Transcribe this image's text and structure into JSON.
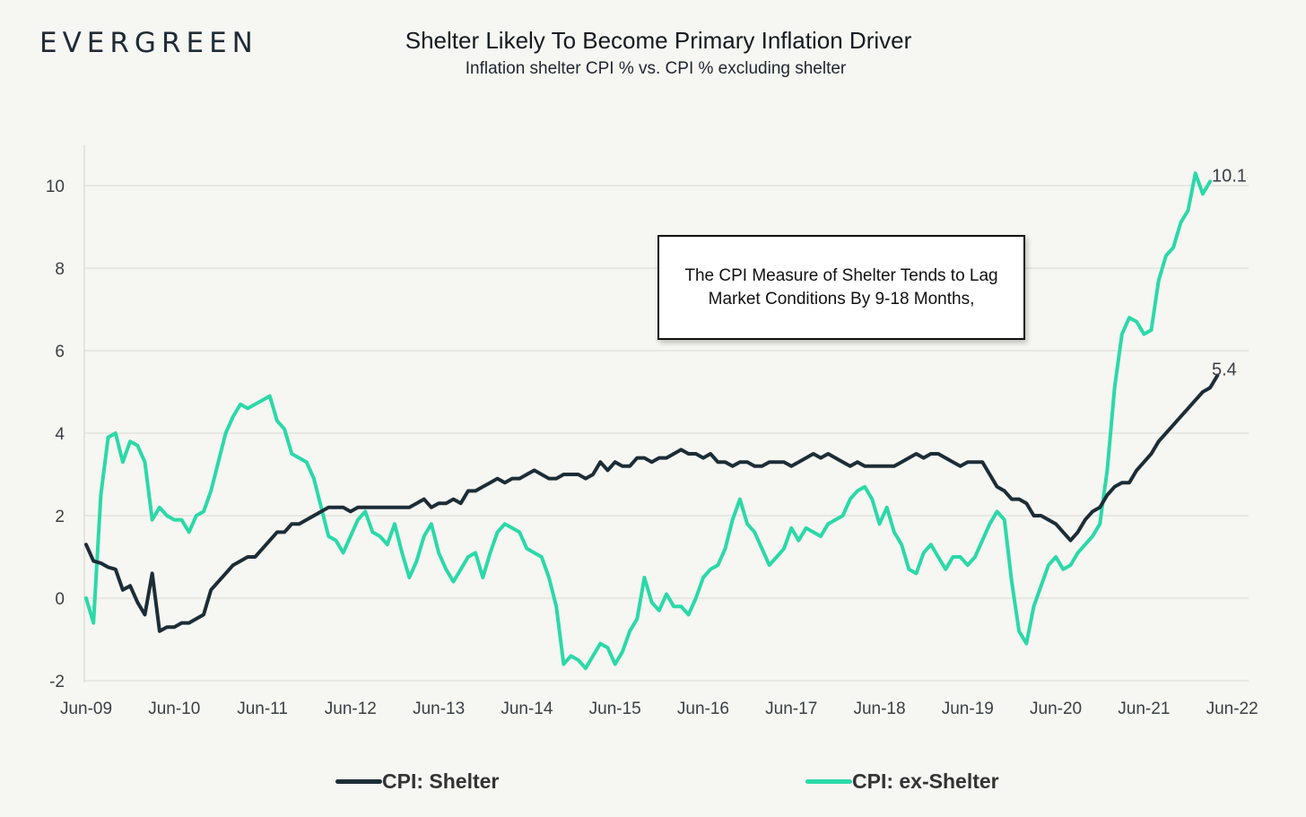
{
  "brand": {
    "logo_text": "EVERGREEN"
  },
  "chart_data": {
    "type": "line",
    "title": "Shelter Likely To Become Primary Inflation Driver",
    "subtitle": "Inflation shelter CPI % vs. CPI % excluding shelter",
    "xlabel": "",
    "ylabel": "",
    "x_range_months": [
      "2009-06",
      "2022-06"
    ],
    "x_ticks": [
      "Jun-09",
      "Jun-10",
      "Jun-11",
      "Jun-12",
      "Jun-13",
      "Jun-14",
      "Jun-15",
      "Jun-16",
      "Jun-17",
      "Jun-18",
      "Jun-19",
      "Jun-20",
      "Jun-21",
      "Jun-22"
    ],
    "y_ticks": [
      -2,
      0,
      2,
      4,
      6,
      8,
      10
    ],
    "ylim": [
      -2,
      11
    ],
    "grid": "horizontal",
    "legend_position": "bottom",
    "colors": {
      "shelter": "#1c2d37",
      "ex_shelter": "#2bd9a8"
    },
    "annotation": "The CPI Measure of Shelter Tends to Lag Market Conditions By 9-18 Months,",
    "end_labels": {
      "ex_shelter": "10.1",
      "shelter": "5.4"
    },
    "series": [
      {
        "name": "CPI: Shelter",
        "color": "#1c2d37",
        "start": "2009-06",
        "frequency": "monthly",
        "values": [
          1.3,
          0.9,
          0.85,
          0.75,
          0.7,
          0.2,
          0.3,
          -0.1,
          -0.4,
          0.6,
          -0.8,
          -0.7,
          -0.7,
          -0.6,
          -0.6,
          -0.5,
          -0.4,
          0.2,
          0.4,
          0.6,
          0.8,
          0.9,
          1.0,
          1.0,
          1.2,
          1.4,
          1.6,
          1.6,
          1.8,
          1.8,
          1.9,
          2.0,
          2.1,
          2.2,
          2.2,
          2.2,
          2.1,
          2.2,
          2.2,
          2.2,
          2.2,
          2.2,
          2.2,
          2.2,
          2.2,
          2.3,
          2.4,
          2.2,
          2.3,
          2.3,
          2.4,
          2.3,
          2.6,
          2.6,
          2.7,
          2.8,
          2.9,
          2.8,
          2.9,
          2.9,
          3.0,
          3.1,
          3.0,
          2.9,
          2.9,
          3.0,
          3.0,
          3.0,
          2.9,
          3.0,
          3.3,
          3.1,
          3.3,
          3.2,
          3.2,
          3.4,
          3.4,
          3.3,
          3.4,
          3.4,
          3.5,
          3.6,
          3.5,
          3.5,
          3.4,
          3.5,
          3.3,
          3.3,
          3.2,
          3.3,
          3.3,
          3.2,
          3.2,
          3.3,
          3.3,
          3.3,
          3.2,
          3.3,
          3.4,
          3.5,
          3.4,
          3.5,
          3.4,
          3.3,
          3.2,
          3.3,
          3.2,
          3.2,
          3.2,
          3.2,
          3.2,
          3.3,
          3.4,
          3.5,
          3.4,
          3.5,
          3.5,
          3.4,
          3.3,
          3.2,
          3.3,
          3.3,
          3.3,
          3.0,
          2.7,
          2.6,
          2.4,
          2.4,
          2.3,
          2.0,
          2.0,
          1.9,
          1.8,
          1.6,
          1.4,
          1.6,
          1.9,
          2.1,
          2.2,
          2.5,
          2.7,
          2.8,
          2.8,
          3.1,
          3.3,
          3.5,
          3.8,
          4.0,
          4.2,
          4.4,
          4.6,
          4.8,
          5.0,
          5.1,
          5.4
        ]
      },
      {
        "name": "CPI: ex-Shelter",
        "color": "#2bd9a8",
        "start": "2009-06",
        "frequency": "monthly",
        "values": [
          0.0,
          -0.6,
          2.5,
          3.9,
          4.0,
          3.3,
          3.8,
          3.7,
          3.3,
          1.9,
          2.2,
          2.0,
          1.9,
          1.9,
          1.6,
          2.0,
          2.1,
          2.6,
          3.3,
          4.0,
          4.4,
          4.7,
          4.6,
          4.7,
          4.8,
          4.9,
          4.3,
          4.1,
          3.5,
          3.4,
          3.3,
          2.9,
          2.2,
          1.5,
          1.4,
          1.1,
          1.5,
          1.9,
          2.1,
          1.6,
          1.5,
          1.3,
          1.8,
          1.1,
          0.5,
          0.9,
          1.5,
          1.8,
          1.1,
          0.7,
          0.4,
          0.7,
          1.0,
          1.1,
          0.5,
          1.1,
          1.6,
          1.8,
          1.7,
          1.6,
          1.2,
          1.1,
          1.0,
          0.5,
          -0.2,
          -1.6,
          -1.4,
          -1.5,
          -1.7,
          -1.4,
          -1.1,
          -1.2,
          -1.6,
          -1.3,
          -0.8,
          -0.5,
          0.5,
          -0.1,
          -0.3,
          0.1,
          -0.2,
          -0.2,
          -0.4,
          0.0,
          0.5,
          0.7,
          0.8,
          1.2,
          1.9,
          2.4,
          1.8,
          1.6,
          1.2,
          0.8,
          1.0,
          1.2,
          1.7,
          1.4,
          1.7,
          1.6,
          1.5,
          1.8,
          1.9,
          2.0,
          2.4,
          2.6,
          2.7,
          2.4,
          1.8,
          2.2,
          1.6,
          1.3,
          0.7,
          0.6,
          1.1,
          1.3,
          1.0,
          0.7,
          1.0,
          1.0,
          0.8,
          1.0,
          1.4,
          1.8,
          2.1,
          1.9,
          0.4,
          -0.8,
          -1.1,
          -0.2,
          0.3,
          0.8,
          1.0,
          0.7,
          0.8,
          1.1,
          1.3,
          1.5,
          1.8,
          3.1,
          5.1,
          6.4,
          6.8,
          6.7,
          6.4,
          6.5,
          7.7,
          8.3,
          8.5,
          9.1,
          9.4,
          10.3,
          9.8,
          10.1
        ]
      }
    ]
  }
}
